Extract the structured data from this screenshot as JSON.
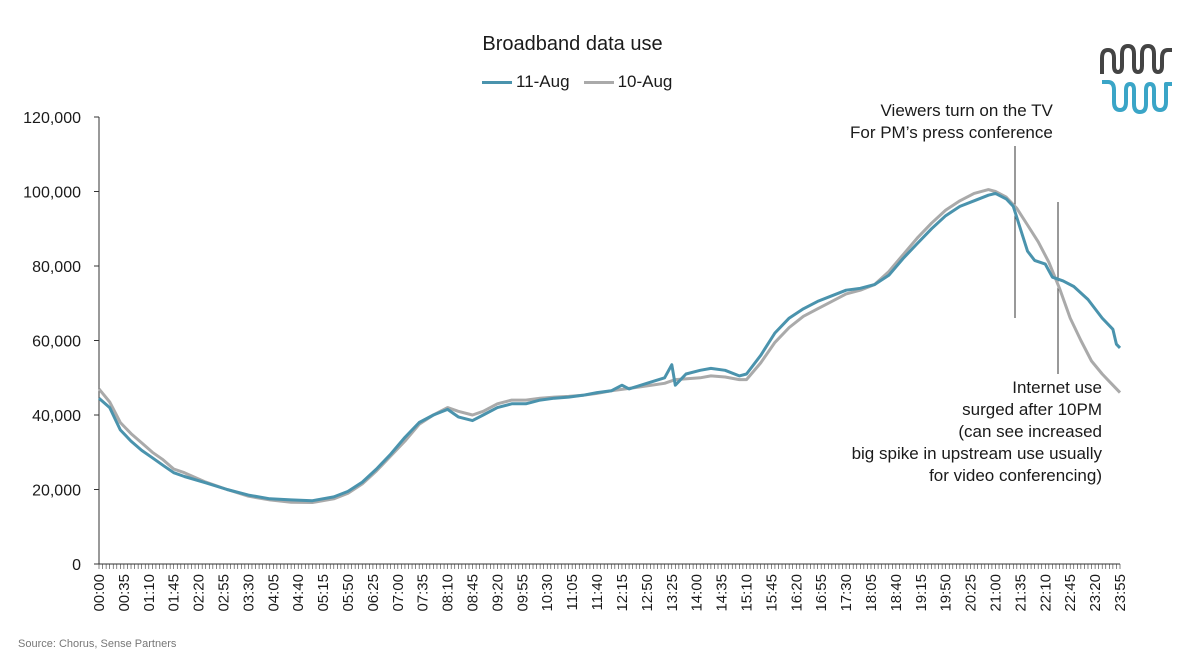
{
  "source": "Source: Chorus, Sense Partners",
  "annotations": {
    "tv": [
      "Viewers turn on the TV",
      "For PM’s press conference"
    ],
    "internet": [
      "Internet use",
      "surged after 10PM",
      "(can see increased",
      "big spike in upstream use usually",
      "for video conferencing)"
    ]
  },
  "colors": {
    "aug11": "#4a93ad",
    "aug10": "#aaaaaa",
    "logo_dark": "#444444",
    "logo_light": "#3aa5c7"
  },
  "chart_data": {
    "type": "line",
    "title": "Broadband data use",
    "xlabel": "",
    "ylabel": "",
    "ylim": [
      0,
      120000
    ],
    "yticks": [
      0,
      20000,
      40000,
      60000,
      80000,
      100000,
      120000
    ],
    "ytick_labels": [
      "0",
      "20,000",
      "40,000",
      "60,000",
      "80,000",
      "100,000",
      "120,000"
    ],
    "xlim": [
      "00:00",
      "23:55"
    ],
    "x_interval_minutes": 5,
    "x_tick_labels": [
      "00:00",
      "00:35",
      "01:10",
      "01:45",
      "02:20",
      "02:55",
      "03:30",
      "04:05",
      "04:40",
      "05:15",
      "05:50",
      "06:25",
      "07:00",
      "07:35",
      "08:10",
      "08:45",
      "09:20",
      "09:55",
      "10:30",
      "11:05",
      "11:40",
      "12:15",
      "12:50",
      "13:25",
      "14:00",
      "14:35",
      "15:10",
      "15:45",
      "16:20",
      "16:55",
      "17:30",
      "18:05",
      "18:40",
      "19:15",
      "19:50",
      "20:25",
      "21:00",
      "21:35",
      "22:10",
      "22:45",
      "23:20",
      "23:55"
    ],
    "grid": false,
    "legend_position": "top",
    "series": [
      {
        "name": "11-Aug",
        "points": [
          [
            "00:00",
            44500
          ],
          [
            "00:15",
            42000
          ],
          [
            "00:30",
            36000
          ],
          [
            "00:45",
            33000
          ],
          [
            "01:00",
            30500
          ],
          [
            "01:15",
            28500
          ],
          [
            "01:30",
            26500
          ],
          [
            "01:45",
            24500
          ],
          [
            "02:00",
            23500
          ],
          [
            "02:30",
            21800
          ],
          [
            "03:00",
            20000
          ],
          [
            "03:30",
            18500
          ],
          [
            "04:00",
            17500
          ],
          [
            "04:30",
            17200
          ],
          [
            "05:00",
            17000
          ],
          [
            "05:30",
            18000
          ],
          [
            "05:50",
            19500
          ],
          [
            "06:10",
            22000
          ],
          [
            "06:30",
            25500
          ],
          [
            "06:50",
            29500
          ],
          [
            "07:10",
            34000
          ],
          [
            "07:30",
            38000
          ],
          [
            "07:50",
            40000
          ],
          [
            "08:10",
            41500
          ],
          [
            "08:25",
            39500
          ],
          [
            "08:45",
            38500
          ],
          [
            "09:00",
            40000
          ],
          [
            "09:20",
            42000
          ],
          [
            "09:40",
            43000
          ],
          [
            "10:00",
            43000
          ],
          [
            "10:20",
            44000
          ],
          [
            "10:40",
            44500
          ],
          [
            "11:00",
            44800
          ],
          [
            "11:20",
            45300
          ],
          [
            "11:40",
            46000
          ],
          [
            "12:00",
            46500
          ],
          [
            "12:15",
            48000
          ],
          [
            "12:25",
            47000
          ],
          [
            "12:50",
            48500
          ],
          [
            "13:15",
            50000
          ],
          [
            "13:25",
            53500
          ],
          [
            "13:30",
            48000
          ],
          [
            "13:45",
            51000
          ],
          [
            "14:05",
            52000
          ],
          [
            "14:20",
            52500
          ],
          [
            "14:40",
            52000
          ],
          [
            "15:00",
            50500
          ],
          [
            "15:10",
            51000
          ],
          [
            "15:30",
            56000
          ],
          [
            "15:50",
            62000
          ],
          [
            "16:10",
            66000
          ],
          [
            "16:30",
            68500
          ],
          [
            "16:50",
            70500
          ],
          [
            "17:10",
            72000
          ],
          [
            "17:30",
            73500
          ],
          [
            "17:50",
            74000
          ],
          [
            "18:10",
            75000
          ],
          [
            "18:30",
            77500
          ],
          [
            "18:50",
            82000
          ],
          [
            "19:10",
            86000
          ],
          [
            "19:30",
            90000
          ],
          [
            "19:50",
            93500
          ],
          [
            "20:10",
            96000
          ],
          [
            "20:30",
            97500
          ],
          [
            "20:50",
            99000
          ],
          [
            "21:00",
            99500
          ],
          [
            "21:15",
            98000
          ],
          [
            "21:25",
            96000
          ],
          [
            "21:35",
            90000
          ],
          [
            "21:45",
            84000
          ],
          [
            "21:55",
            81500
          ],
          [
            "22:10",
            80500
          ],
          [
            "22:20",
            77000
          ],
          [
            "22:35",
            76000
          ],
          [
            "22:50",
            74500
          ],
          [
            "23:10",
            71000
          ],
          [
            "23:30",
            66000
          ],
          [
            "23:45",
            63000
          ],
          [
            "23:50",
            59000
          ],
          [
            "23:55",
            58000
          ]
        ]
      },
      {
        "name": "10-Aug",
        "points": [
          [
            "00:00",
            47000
          ],
          [
            "00:15",
            43500
          ],
          [
            "00:30",
            38000
          ],
          [
            "00:45",
            35000
          ],
          [
            "01:00",
            32500
          ],
          [
            "01:15",
            30000
          ],
          [
            "01:30",
            28000
          ],
          [
            "01:45",
            25500
          ],
          [
            "02:00",
            24500
          ],
          [
            "02:30",
            22000
          ],
          [
            "03:00",
            20000
          ],
          [
            "03:30",
            18200
          ],
          [
            "04:00",
            17200
          ],
          [
            "04:30",
            16600
          ],
          [
            "05:00",
            16500
          ],
          [
            "05:30",
            17500
          ],
          [
            "05:50",
            19000
          ],
          [
            "06:10",
            21500
          ],
          [
            "06:30",
            25000
          ],
          [
            "06:50",
            29000
          ],
          [
            "07:10",
            33000
          ],
          [
            "07:30",
            37500
          ],
          [
            "07:50",
            40000
          ],
          [
            "08:10",
            42000
          ],
          [
            "08:25",
            41000
          ],
          [
            "08:45",
            40000
          ],
          [
            "09:00",
            41000
          ],
          [
            "09:20",
            43000
          ],
          [
            "09:40",
            44000
          ],
          [
            "10:00",
            44000
          ],
          [
            "10:20",
            44500
          ],
          [
            "10:40",
            44800
          ],
          [
            "11:00",
            45000
          ],
          [
            "11:20",
            45300
          ],
          [
            "11:40",
            45800
          ],
          [
            "12:00",
            46500
          ],
          [
            "12:20",
            47000
          ],
          [
            "12:50",
            47800
          ],
          [
            "13:15",
            48500
          ],
          [
            "13:30",
            49500
          ],
          [
            "14:05",
            50000
          ],
          [
            "14:20",
            50500
          ],
          [
            "14:40",
            50200
          ],
          [
            "15:00",
            49500
          ],
          [
            "15:10",
            49500
          ],
          [
            "15:30",
            54000
          ],
          [
            "15:50",
            59500
          ],
          [
            "16:10",
            63500
          ],
          [
            "16:30",
            66500
          ],
          [
            "16:50",
            68500
          ],
          [
            "17:10",
            70500
          ],
          [
            "17:30",
            72500
          ],
          [
            "17:50",
            73500
          ],
          [
            "18:10",
            75000
          ],
          [
            "18:30",
            78500
          ],
          [
            "18:50",
            83000
          ],
          [
            "19:10",
            87500
          ],
          [
            "19:30",
            91500
          ],
          [
            "19:50",
            95000
          ],
          [
            "20:10",
            97500
          ],
          [
            "20:30",
            99500
          ],
          [
            "20:50",
            100500
          ],
          [
            "21:00",
            100000
          ],
          [
            "21:15",
            98500
          ],
          [
            "21:30",
            95500
          ],
          [
            "21:45",
            91000
          ],
          [
            "22:00",
            86500
          ],
          [
            "22:15",
            81000
          ],
          [
            "22:30",
            74000
          ],
          [
            "22:45",
            66000
          ],
          [
            "23:00",
            60000
          ],
          [
            "23:15",
            54500
          ],
          [
            "23:30",
            51000
          ],
          [
            "23:45",
            48000
          ],
          [
            "23:55",
            46000
          ]
        ]
      }
    ]
  }
}
